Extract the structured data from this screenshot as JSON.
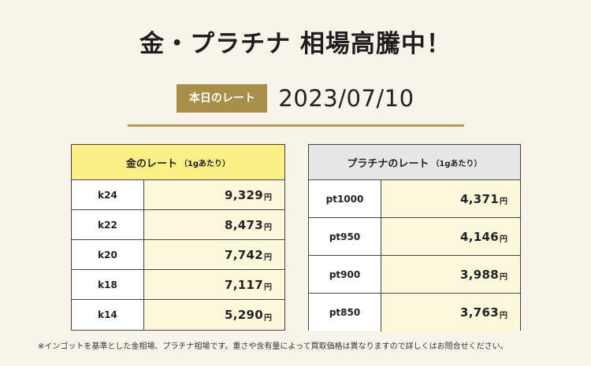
{
  "headline": "金・プラチナ 相場高騰中！",
  "rate_badge": "本日のレート",
  "date": "2023/07/10",
  "gold_table": {
    "title": "金のレート",
    "unit": "（1gあたり）",
    "rows": [
      {
        "code": "k24",
        "price": "9,329",
        "yen": "円"
      },
      {
        "code": "k22",
        "price": "8,473",
        "yen": "円"
      },
      {
        "code": "k20",
        "price": "7,742",
        "yen": "円"
      },
      {
        "code": "k18",
        "price": "7,117",
        "yen": "円"
      },
      {
        "code": "k14",
        "price": "5,290",
        "yen": "円"
      }
    ]
  },
  "platinum_table": {
    "title": "プラチナのレート",
    "unit": "（1gあたり）",
    "rows": [
      {
        "code": "pt1000",
        "price": "4,371",
        "yen": "円"
      },
      {
        "code": "pt950",
        "price": "4,146",
        "yen": "円"
      },
      {
        "code": "pt900",
        "price": "3,988",
        "yen": "円"
      },
      {
        "code": "pt850",
        "price": "3,763",
        "yen": "円"
      }
    ]
  },
  "footnote": "※インゴットを基準とした金相場、プラチナ相場です。重さや含有量によって買取価格は異なりますので詳しくはお問合せください。",
  "colors": {
    "background": "#f8f4ea",
    "badge": "#a78f4a",
    "gold_header": "#fbf086",
    "platinum_header": "#e6e6e6",
    "price_cell": "#fbf8dc",
    "rule": "#b59d54"
  }
}
